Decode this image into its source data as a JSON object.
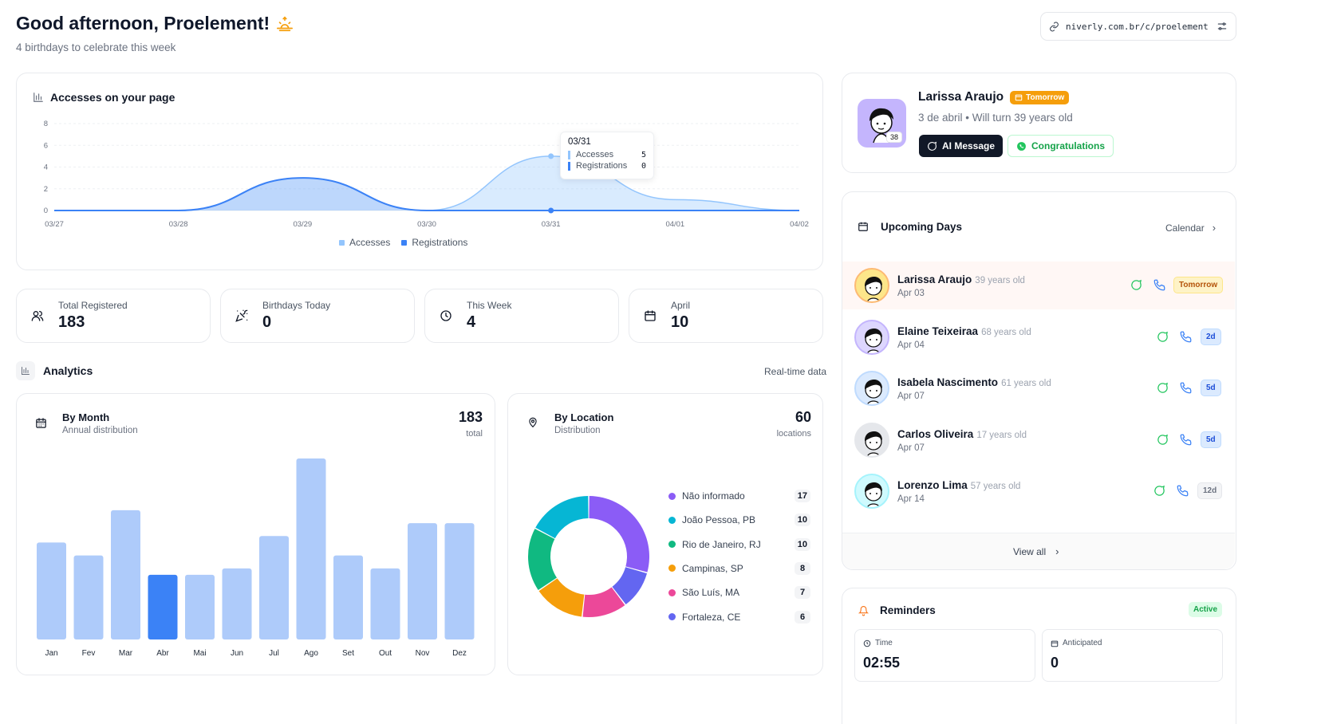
{
  "header": {
    "greeting": "Good afternoon, Proelement!",
    "subtitle": "4 birthdays to celebrate this week",
    "url": "niverly.com.br/c/proelement"
  },
  "accesses": {
    "title": "Accesses on your page",
    "tooltip": {
      "date": "03/31",
      "accesses_label": "Accesses",
      "accesses_value": "5",
      "registrations_label": "Registrations",
      "registrations_value": "0"
    },
    "legend": {
      "accesses": "Accesses",
      "registrations": "Registrations"
    }
  },
  "stats": [
    {
      "label": "Total Registered",
      "value": "183"
    },
    {
      "label": "Birthdays Today",
      "value": "0"
    },
    {
      "label": "This Week",
      "value": "4"
    },
    {
      "label": "April",
      "value": "10"
    }
  ],
  "analytics": {
    "title": "Analytics",
    "realtime": "Real-time data"
  },
  "by_month": {
    "title": "By Month",
    "subtitle": "Annual distribution",
    "total": "183",
    "total_label": "total"
  },
  "by_location": {
    "title": "By Location",
    "subtitle": "Distribution",
    "total": "60",
    "total_label": "locations",
    "items": [
      {
        "name": "Não informado",
        "count": "17",
        "color": "#8b5cf6"
      },
      {
        "name": "João Pessoa, PB",
        "count": "10",
        "color": "#06b6d4"
      },
      {
        "name": "Rio de Janeiro, RJ",
        "count": "10",
        "color": "#10b981"
      },
      {
        "name": "Campinas, SP",
        "count": "8",
        "color": "#f59e0b"
      },
      {
        "name": "São Luís, MA",
        "count": "7",
        "color": "#ec4899"
      },
      {
        "name": "Fortaleza, CE",
        "count": "6",
        "color": "#6366f1"
      }
    ]
  },
  "chart_data": [
    {
      "type": "area",
      "title": "Accesses on your page",
      "categories": [
        "03/27",
        "03/28",
        "03/29",
        "03/30",
        "03/31",
        "04/01",
        "04/02"
      ],
      "series": [
        {
          "name": "Accesses",
          "values": [
            0,
            0,
            3,
            0,
            5,
            1,
            0
          ]
        },
        {
          "name": "Registrations",
          "values": [
            0,
            0,
            3,
            0,
            0,
            0,
            0
          ]
        }
      ],
      "ylim": [
        0,
        8
      ],
      "yticks": [
        0,
        2,
        4,
        6,
        8
      ]
    },
    {
      "type": "bar",
      "title": "By Month",
      "categories": [
        "Jan",
        "Fev",
        "Mar",
        "Abr",
        "Mai",
        "Jun",
        "Jul",
        "Ago",
        "Set",
        "Out",
        "Nov",
        "Dez"
      ],
      "values": [
        15,
        13,
        20,
        10,
        10,
        11,
        16,
        28,
        13,
        11,
        18,
        18
      ],
      "highlight": "Abr",
      "ylim": [
        0,
        28
      ]
    },
    {
      "type": "pie",
      "title": "By Location",
      "categories": [
        "Não informado",
        "João Pessoa, PB",
        "Rio de Janeiro, RJ",
        "Campinas, SP",
        "São Luís, MA",
        "Fortaleza, CE"
      ],
      "values": [
        17,
        10,
        10,
        8,
        7,
        6
      ]
    }
  ],
  "featured": {
    "name": "Larissa Araujo",
    "badge": "Tomorrow",
    "details": "3 de abril • Will turn 39 years old",
    "age_badge": "38",
    "ai_button": "AI Message",
    "congrats_button": "Congratulations"
  },
  "upcoming": {
    "title": "Upcoming Days",
    "calendar_link": "Calendar",
    "view_all": "View all",
    "items": [
      {
        "name": "Larissa Araujo",
        "age": "39 years old",
        "date": "Apr 03",
        "chip": "Tomorrow"
      },
      {
        "name": "Elaine Teixeiraa",
        "age": "68 years old",
        "date": "Apr 04",
        "chip": "2d"
      },
      {
        "name": "Isabela Nascimento",
        "age": "61 years old",
        "date": "Apr 07",
        "chip": "5d"
      },
      {
        "name": "Carlos Oliveira",
        "age": "17 years old",
        "date": "Apr 07",
        "chip": "5d"
      },
      {
        "name": "Lorenzo Lima",
        "age": "57 years old",
        "date": "Apr 14",
        "chip": "12d"
      }
    ]
  },
  "reminders": {
    "title": "Reminders",
    "status": "Active",
    "time_label": "Time",
    "time_value": "02:55",
    "anticipated_label": "Anticipated",
    "anticipated_value": "0"
  },
  "colors": {
    "accesses": "#93c5fd",
    "registrations": "#3b82f6",
    "bar": "#aecbfa",
    "bar_highlight": "#3b82f6"
  }
}
